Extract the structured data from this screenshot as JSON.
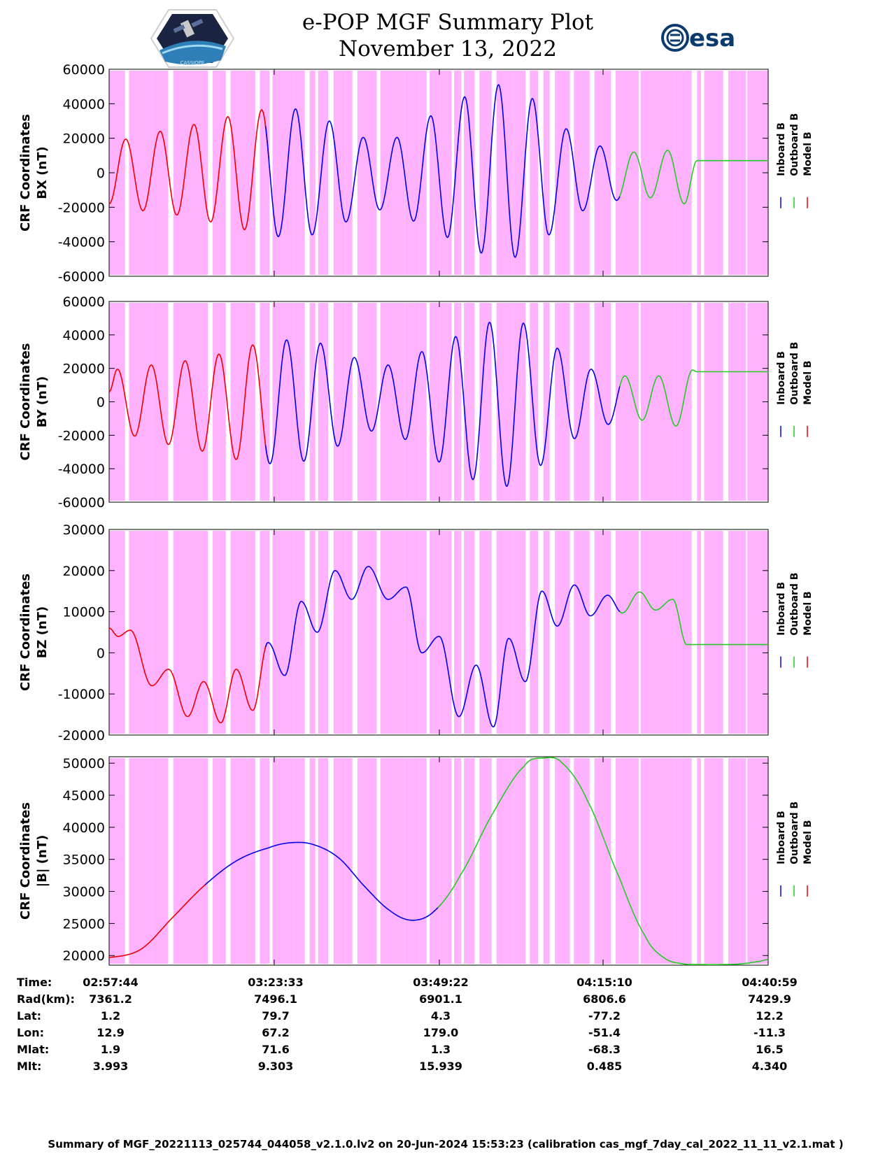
{
  "header": {
    "title": "e-POP MGF Summary Plot",
    "date": "November 13, 2022",
    "logo_left": "CASSIOPE",
    "logo_right": "esa"
  },
  "legend": {
    "labels": [
      "Inboard B",
      "Outboard B",
      "Model B"
    ],
    "colors": [
      "#0000ee",
      "#22cc22",
      "#ee0000"
    ]
  },
  "chart_data": [
    {
      "type": "line",
      "panel": "BX",
      "ylabel": [
        "CRF Coordinates",
        "BX (nT)"
      ],
      "ylim": [
        -60000,
        60000
      ],
      "yticks": [
        "60000",
        "40000",
        "20000",
        "0",
        "-20000",
        "-40000",
        "-60000"
      ],
      "ytick_values": [
        60000,
        40000,
        20000,
        0,
        -20000,
        -40000,
        -60000
      ],
      "x_minutes_range": [
        0,
        103.25
      ],
      "extrema": [
        [
          0,
          -18000
        ],
        [
          2.6,
          19500
        ],
        [
          5.3,
          -22000
        ],
        [
          8.0,
          24000
        ],
        [
          10.6,
          -24500
        ],
        [
          13.3,
          28000
        ],
        [
          15.9,
          -28500
        ],
        [
          18.6,
          32500
        ],
        [
          21.2,
          -33000
        ],
        [
          23.9,
          36500
        ],
        [
          26.5,
          -37000
        ],
        [
          29.2,
          37000
        ],
        [
          31.8,
          -36000
        ],
        [
          34.5,
          30000
        ],
        [
          37.1,
          -28500
        ],
        [
          39.8,
          20500
        ],
        [
          42.4,
          -21500
        ],
        [
          45.1,
          20500
        ],
        [
          47.7,
          -28000
        ],
        [
          50.4,
          33000
        ],
        [
          53.0,
          -37500
        ],
        [
          55.7,
          44000
        ],
        [
          58.3,
          -46500
        ],
        [
          61.0,
          51000
        ],
        [
          63.6,
          -49000
        ],
        [
          66.3,
          43000
        ],
        [
          68.9,
          -36000
        ],
        [
          71.6,
          25500
        ],
        [
          74.2,
          -22000
        ],
        [
          76.9,
          15500
        ],
        [
          79.5,
          -16000
        ],
        [
          82.2,
          12000
        ],
        [
          84.8,
          -14500
        ],
        [
          87.5,
          13000
        ],
        [
          90.1,
          -18000
        ],
        [
          92.1,
          7000
        ]
      ],
      "series": [
        {
          "name": "Inboard B",
          "segments": [
            [
              24.5,
              80.0
            ]
          ]
        },
        {
          "name": "Outboard B",
          "segments": [
            [
              80.0,
              103.25
            ]
          ]
        },
        {
          "name": "Model B",
          "segments": [
            [
              0,
              25.0
            ]
          ]
        }
      ]
    },
    {
      "type": "line",
      "panel": "BY",
      "ylabel": [
        "CRF Coordinates",
        "BY (nT)"
      ],
      "ylim": [
        -60000,
        60000
      ],
      "yticks": [
        "60000",
        "40000",
        "20000",
        "0",
        "-20000",
        "-40000",
        "-60000"
      ],
      "ytick_values": [
        60000,
        40000,
        20000,
        0,
        -20000,
        -40000,
        -60000
      ],
      "x_minutes_range": [
        0,
        103.25
      ],
      "extrema": [
        [
          0,
          6000
        ],
        [
          1.3,
          19500
        ],
        [
          4.0,
          -20500
        ],
        [
          6.6,
          22000
        ],
        [
          9.3,
          -25500
        ],
        [
          11.9,
          24500
        ],
        [
          14.6,
          -29500
        ],
        [
          17.2,
          28500
        ],
        [
          19.9,
          -34500
        ],
        [
          22.5,
          34000
        ],
        [
          25.2,
          -37000
        ],
        [
          27.8,
          37000
        ],
        [
          30.5,
          -35500
        ],
        [
          33.1,
          35000
        ],
        [
          35.8,
          -26500
        ],
        [
          38.4,
          26500
        ],
        [
          41.1,
          -17500
        ],
        [
          43.7,
          22000
        ],
        [
          46.4,
          -22500
        ],
        [
          49.0,
          30000
        ],
        [
          51.7,
          -36000
        ],
        [
          54.3,
          39000
        ],
        [
          57.0,
          -46500
        ],
        [
          59.6,
          47500
        ],
        [
          62.3,
          -50500
        ],
        [
          64.9,
          47000
        ],
        [
          67.6,
          -38000
        ],
        [
          70.2,
          32000
        ],
        [
          72.9,
          -22000
        ],
        [
          75.5,
          19500
        ],
        [
          78.2,
          -13500
        ],
        [
          80.8,
          15500
        ],
        [
          83.5,
          -11000
        ],
        [
          86.1,
          15500
        ],
        [
          88.8,
          -14500
        ],
        [
          91.4,
          19000
        ],
        [
          92.1,
          18000
        ]
      ],
      "series": [
        {
          "name": "Inboard B",
          "segments": [
            [
              24.5,
              80.0
            ]
          ]
        },
        {
          "name": "Outboard B",
          "segments": [
            [
              80.0,
              103.25
            ]
          ]
        },
        {
          "name": "Model B",
          "segments": [
            [
              0,
              25.0
            ]
          ]
        }
      ]
    },
    {
      "type": "line",
      "panel": "BZ",
      "ylabel": [
        "CRF Coordinates",
        "BZ (nT)"
      ],
      "ylim": [
        -20000,
        30000
      ],
      "yticks": [
        "30000",
        "20000",
        "10000",
        "0",
        "-10000",
        "-20000"
      ],
      "ytick_values": [
        30000,
        20000,
        10000,
        0,
        -10000,
        -20000
      ],
      "x_minutes_range": [
        0,
        103.25
      ],
      "extrema": [
        [
          0,
          6000
        ],
        [
          1.4,
          4000
        ],
        [
          3.3,
          5500
        ],
        [
          6.7,
          -8000
        ],
        [
          9.3,
          -4000
        ],
        [
          12.3,
          -15500
        ],
        [
          14.8,
          -7000
        ],
        [
          17.5,
          -17000
        ],
        [
          19.9,
          -4000
        ],
        [
          22.5,
          -14000
        ],
        [
          24.9,
          2500
        ],
        [
          27.5,
          -5500
        ],
        [
          30.1,
          12500
        ],
        [
          32.6,
          5000
        ],
        [
          35.4,
          20000
        ],
        [
          38.0,
          13000
        ],
        [
          40.6,
          21000
        ],
        [
          43.7,
          13000
        ],
        [
          46.5,
          16000
        ],
        [
          49.0,
          0
        ],
        [
          51.7,
          4000
        ],
        [
          54.8,
          -15500
        ],
        [
          57.5,
          -3000
        ],
        [
          60.2,
          -18000
        ],
        [
          62.6,
          3500
        ],
        [
          65.2,
          -7000
        ],
        [
          67.8,
          15000
        ],
        [
          70.2,
          6500
        ],
        [
          72.9,
          16500
        ],
        [
          75.4,
          9000
        ],
        [
          78.1,
          14000
        ],
        [
          80.4,
          9700
        ],
        [
          83.1,
          14800
        ],
        [
          85.6,
          10400
        ],
        [
          88.3,
          13000
        ],
        [
          90.5,
          2000
        ],
        [
          92.1,
          2000
        ]
      ],
      "series": [
        {
          "name": "Inboard B",
          "segments": [
            [
              24.5,
              80.0
            ]
          ]
        },
        {
          "name": "Outboard B",
          "segments": [
            [
              80.0,
              103.25
            ]
          ]
        },
        {
          "name": "Model B",
          "segments": [
            [
              0,
              25.0
            ]
          ]
        }
      ]
    },
    {
      "type": "line",
      "panel": "|B|",
      "ylabel": [
        "CRF Coordinates",
        "|B| (nT)"
      ],
      "ylim": [
        18500,
        51000
      ],
      "yticks": [
        "50000",
        "45000",
        "40000",
        "35000",
        "30000",
        "25000",
        "20000"
      ],
      "ytick_values": [
        50000,
        45000,
        40000,
        35000,
        30000,
        25000,
        20000
      ],
      "x_minutes_range": [
        0,
        103.25
      ],
      "knots": [
        [
          0,
          19700
        ],
        [
          5,
          21000
        ],
        [
          10,
          26000
        ],
        [
          15,
          31000
        ],
        [
          20,
          34800
        ],
        [
          25,
          36800
        ],
        [
          28.5,
          37600
        ],
        [
          32,
          37300
        ],
        [
          36,
          35200
        ],
        [
          40,
          30800
        ],
        [
          44,
          27000
        ],
        [
          47.5,
          25500
        ],
        [
          51,
          27000
        ],
        [
          55,
          32500
        ],
        [
          60,
          42000
        ],
        [
          65,
          49500
        ],
        [
          68,
          50800
        ],
        [
          71,
          50000
        ],
        [
          75,
          44000
        ],
        [
          80,
          32000
        ],
        [
          84,
          23000
        ],
        [
          87,
          19600
        ],
        [
          90,
          18700
        ],
        [
          93,
          18600
        ],
        [
          96,
          18600
        ],
        [
          99,
          18700
        ],
        [
          102,
          19100
        ],
        [
          103.25,
          19400
        ]
      ],
      "series": [
        {
          "name": "Inboard B",
          "segments": [
            [
              15.0,
              52.0
            ]
          ]
        },
        {
          "name": "Outboard B",
          "segments": [
            [
              51.5,
              103.25
            ]
          ]
        },
        {
          "name": "Model B",
          "segments": [
            [
              0,
              15.5
            ]
          ]
        }
      ]
    }
  ],
  "time_table": {
    "row_labels": [
      "Time:",
      "Rad(km):",
      "Lat:",
      "Lon:",
      "Mlat:",
      "Mlt:"
    ],
    "columns": [
      [
        "02:57:44",
        "7361.2",
        "1.2",
        "12.9",
        "1.9",
        "3.993"
      ],
      [
        "03:23:33",
        "7496.1",
        "79.7",
        "67.2",
        "71.6",
        "9.303"
      ],
      [
        "03:49:22",
        "6901.1",
        "4.3",
        "179.0",
        "1.3",
        "15.939"
      ],
      [
        "04:15:10",
        "6806.6",
        "-77.2",
        "-51.4",
        "-68.3",
        "0.485"
      ],
      [
        "04:40:59",
        "7429.9",
        "12.2",
        "-11.3",
        "16.5",
        "4.340"
      ]
    ]
  },
  "footer": "Summary of MGF_20221113_025744_044058_v2.1.0.lv2 on 20-Jun-2024 15:53:23 (calibration cas_mgf_7day_cal_2022_11_11_v2.1.mat )",
  "background_color": "#ffb3ff"
}
